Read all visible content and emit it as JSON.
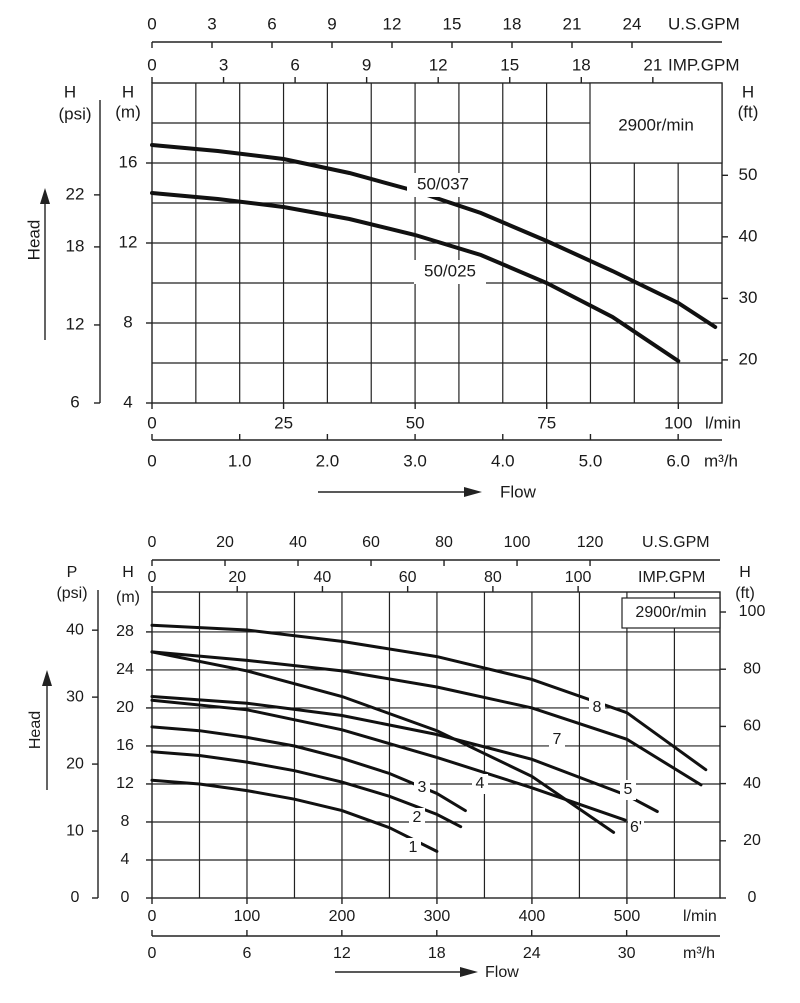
{
  "chart_data": [
    {
      "type": "line",
      "speed_label": "2900r/min",
      "y_title": "Head",
      "x_title": "Flow",
      "xlabel": "l/min",
      "xlim": [
        0,
        108.3
      ],
      "xticks": [
        0,
        25,
        50,
        75,
        100
      ],
      "x2label": "m³/h",
      "x2lim": [
        0,
        6.5
      ],
      "x2ticks": [
        0,
        {
          "value": 1,
          "label": "1.0"
        },
        {
          "value": 2,
          "label": "2.0"
        },
        {
          "value": 3,
          "label": "3.0"
        },
        {
          "value": 4,
          "label": "4.0"
        },
        {
          "value": 5,
          "label": "5.0"
        },
        {
          "value": 6,
          "label": "6.0"
        }
      ],
      "x2grid": [
        0.5,
        1,
        1.5,
        2,
        2.5,
        3,
        3.5,
        4,
        4.5,
        5,
        5.5,
        6
      ],
      "x3label": "U.S.GPM",
      "x3lim": [
        0,
        28.5
      ],
      "x3ticks": [
        0,
        3,
        6,
        9,
        12,
        15,
        18,
        21,
        24
      ],
      "x4label": "IMP.GPM",
      "x4lim": [
        0,
        23.9
      ],
      "x4ticks": [
        0,
        3,
        6,
        9,
        12,
        15,
        18,
        21
      ],
      "ylabel": "H",
      "yunit": "(m)",
      "ylim": [
        4,
        20
      ],
      "yticks": [
        4,
        8,
        12,
        16
      ],
      "ygrid": [
        6,
        8,
        10,
        12,
        14,
        16,
        18
      ],
      "y2label": "H",
      "y2unit": "(psi)",
      "y2lim": [
        6,
        30.6
      ],
      "y2ticks": [
        6,
        12,
        18,
        22
      ],
      "y3label": "H",
      "y3unit": "(ft)",
      "y3lim": [
        13,
        65
      ],
      "y3ticks": [
        20,
        30,
        40,
        50
      ],
      "series": [
        {
          "name": "50/037",
          "color": "#111111",
          "x": [
            0,
            12.5,
            25,
            37.5,
            50,
            62.5,
            75,
            87.5,
            100,
            107
          ],
          "values": [
            16.9,
            16.6,
            16.2,
            15.5,
            14.6,
            13.5,
            12.1,
            10.6,
            9.0,
            7.8
          ]
        },
        {
          "name": "50/025",
          "color": "#111111",
          "x": [
            0,
            12.5,
            25,
            37.5,
            50,
            62.5,
            75,
            87.5,
            100
          ],
          "values": [
            14.5,
            14.2,
            13.8,
            13.2,
            12.4,
            11.4,
            10.0,
            8.3,
            6.1
          ]
        }
      ]
    },
    {
      "type": "line",
      "speed_label": "2900r/min",
      "y_title": "Head",
      "x_title": "Flow",
      "xlabel": "l/min",
      "xlim": [
        0,
        598
      ],
      "xticks": [
        0,
        100,
        200,
        300,
        400,
        500
      ],
      "xgrid": [
        50,
        100,
        150,
        200,
        250,
        300,
        350,
        400,
        450,
        500,
        550
      ],
      "x2label": "m³/h",
      "x2lim": [
        0,
        35.9
      ],
      "x2ticks": [
        0,
        6,
        12,
        18,
        24,
        30
      ],
      "x3label": "U.S.GPM",
      "x3lim": [
        0,
        155.6
      ],
      "x3ticks": [
        0,
        20,
        40,
        60,
        80,
        100,
        120
      ],
      "x4label": "IMP.GPM",
      "x4lim": [
        0,
        133.3
      ],
      "x4ticks": [
        0,
        20,
        40,
        60,
        80,
        100
      ],
      "ylabel": "H",
      "yunit": "(m)",
      "ylim": [
        0,
        32.2
      ],
      "yticks": [
        0,
        4,
        8,
        12,
        16,
        20,
        24,
        28
      ],
      "ygrid": [
        4,
        8,
        12,
        16,
        20,
        24,
        28
      ],
      "y2label": "P",
      "y2unit": "(psi)",
      "y2lim": [
        0,
        45.7
      ],
      "y2ticks": [
        0,
        10,
        20,
        30,
        40
      ],
      "y3label": "H",
      "y3unit": "(ft)",
      "y3lim": [
        0,
        107
      ],
      "y3ticks": [
        0,
        20,
        40,
        60,
        80,
        100
      ],
      "series": [
        {
          "name": "1",
          "color": "#111111",
          "x": [
            0,
            50,
            100,
            150,
            200,
            250,
            300
          ],
          "values": [
            12.4,
            12.0,
            11.3,
            10.4,
            9.2,
            7.4,
            4.9
          ]
        },
        {
          "name": "2",
          "color": "#111111",
          "x": [
            0,
            50,
            100,
            150,
            200,
            250,
            300,
            325
          ],
          "values": [
            15.4,
            15.0,
            14.3,
            13.4,
            12.2,
            10.7,
            8.8,
            7.5
          ]
        },
        {
          "name": "3",
          "color": "#111111",
          "x": [
            0,
            50,
            100,
            150,
            200,
            250,
            300,
            330
          ],
          "values": [
            18.0,
            17.6,
            16.9,
            16.0,
            14.7,
            13.1,
            11.0,
            9.2
          ]
        },
        {
          "name": "4",
          "color": "#111111",
          "x": [
            0,
            100,
            200,
            300,
            400,
            498
          ],
          "values": [
            20.8,
            19.8,
            17.7,
            14.8,
            11.6,
            8.2
          ]
        },
        {
          "name": "5",
          "color": "#111111",
          "x": [
            0,
            100,
            200,
            300,
            400,
            500,
            532
          ],
          "values": [
            21.2,
            20.5,
            19.2,
            17.2,
            14.6,
            10.8,
            9.1
          ]
        },
        {
          "name": "6'",
          "color": "#111111",
          "x": [
            0,
            100,
            200,
            300,
            400,
            486
          ],
          "values": [
            25.9,
            23.9,
            21.2,
            17.6,
            12.8,
            6.9
          ]
        },
        {
          "name": "7",
          "color": "#111111",
          "x": [
            0,
            100,
            200,
            300,
            400,
            500,
            578
          ],
          "values": [
            25.9,
            25.0,
            23.9,
            22.2,
            20.0,
            16.7,
            11.9
          ]
        },
        {
          "name": "8",
          "color": "#111111",
          "x": [
            0,
            100,
            200,
            300,
            400,
            500,
            583
          ],
          "values": [
            28.7,
            28.2,
            27.0,
            25.4,
            23.0,
            19.5,
            13.5
          ]
        }
      ]
    }
  ]
}
